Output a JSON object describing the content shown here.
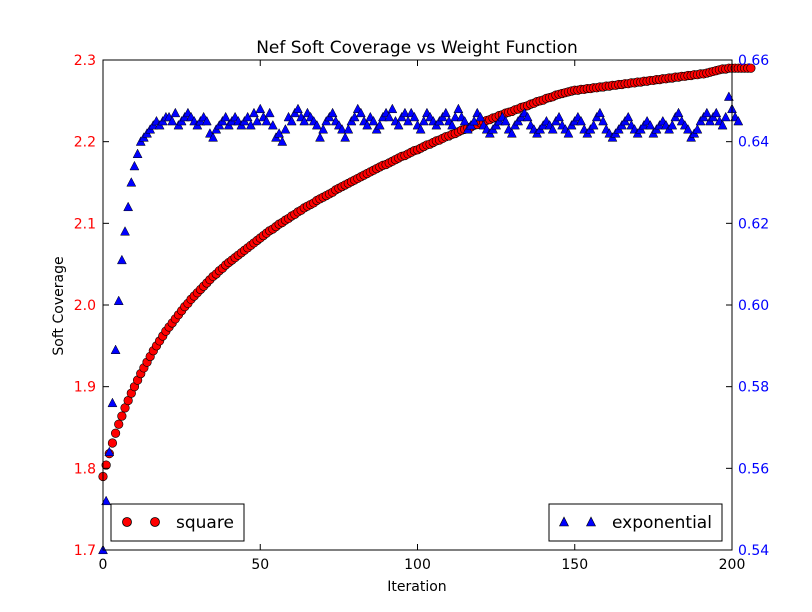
{
  "chart_data": {
    "type": "scatter",
    "title": "Nef Soft Coverage vs Weight Function",
    "xlabel": "Iteration",
    "ylabel": "Soft Coverage",
    "xlim": [
      0,
      200
    ],
    "ylim_left": [
      1.7,
      2.3
    ],
    "ylim_right": [
      0.54,
      0.66
    ],
    "x_ticks": [
      0,
      50,
      100,
      150,
      200
    ],
    "y_ticks_left": [
      "1.7",
      "1.8",
      "1.9",
      "2.0",
      "2.1",
      "2.2",
      "2.3"
    ],
    "y_ticks_right": [
      "0.54",
      "0.56",
      "0.58",
      "0.60",
      "0.62",
      "0.64",
      "0.66"
    ],
    "grid": false,
    "series": [
      {
        "name": "square",
        "axis": "left",
        "marker": "circle",
        "color": "#ff0000",
        "legend_position": "lower-left",
        "x_start": 0,
        "x_step": 1,
        "values": [
          1.79,
          1.804,
          1.818,
          1.831,
          1.843,
          1.854,
          1.864,
          1.874,
          1.883,
          1.892,
          1.9,
          1.908,
          1.916,
          1.923,
          1.93,
          1.937,
          1.944,
          1.95,
          1.956,
          1.962,
          1.968,
          1.973,
          1.978,
          1.983,
          1.988,
          1.993,
          1.998,
          2.002,
          2.007,
          2.011,
          2.015,
          2.019,
          2.023,
          2.027,
          2.031,
          2.035,
          2.038,
          2.042,
          2.045,
          2.049,
          2.052,
          2.055,
          2.058,
          2.061,
          2.064,
          2.067,
          2.07,
          2.073,
          2.076,
          2.079,
          2.082,
          2.085,
          2.088,
          2.091,
          2.093,
          2.096,
          2.099,
          2.101,
          2.104,
          2.106,
          2.109,
          2.111,
          2.114,
          2.116,
          2.119,
          2.121,
          2.123,
          2.125,
          2.128,
          2.13,
          2.132,
          2.134,
          2.136,
          2.138,
          2.141,
          2.143,
          2.145,
          2.147,
          2.149,
          2.151,
          2.153,
          2.155,
          2.157,
          2.159,
          2.161,
          2.163,
          2.165,
          2.167,
          2.169,
          2.171,
          2.172,
          2.174,
          2.176,
          2.178,
          2.18,
          2.182,
          2.183,
          2.185,
          2.187,
          2.189,
          2.19,
          2.192,
          2.194,
          2.196,
          2.197,
          2.199,
          2.201,
          2.202,
          2.204,
          2.206,
          2.207,
          2.209,
          2.21,
          2.212,
          2.214,
          2.215,
          2.217,
          2.218,
          2.22,
          2.221,
          2.223,
          2.224,
          2.226,
          2.227,
          2.229,
          2.23,
          2.232,
          2.233,
          2.235,
          2.236,
          2.237,
          2.239,
          2.24,
          2.242,
          2.243,
          2.244,
          2.246,
          2.247,
          2.249,
          2.25,
          2.251,
          2.253,
          2.254,
          2.255,
          2.257,
          2.258,
          2.259,
          2.26,
          2.261,
          2.262,
          2.263,
          2.263,
          2.264,
          2.264,
          2.265,
          2.265,
          2.266,
          2.266,
          2.267,
          2.267,
          2.268,
          2.268,
          2.269,
          2.269,
          2.27,
          2.27,
          2.271,
          2.271,
          2.272,
          2.272,
          2.273,
          2.273,
          2.274,
          2.274,
          2.275,
          2.275,
          2.276,
          2.276,
          2.277,
          2.277,
          2.278,
          2.278,
          2.279,
          2.279,
          2.28,
          2.28,
          2.281,
          2.281,
          2.282,
          2.282,
          2.283,
          2.283,
          2.284,
          2.285,
          2.286,
          2.287,
          2.288,
          2.289,
          2.289,
          2.29,
          2.29,
          2.29,
          2.29,
          2.29,
          2.29,
          2.29,
          2.29
        ]
      },
      {
        "name": "exponential",
        "axis": "right",
        "marker": "triangle",
        "color": "#0000ff",
        "legend_position": "lower-right",
        "x_start": 0,
        "x_step": 1,
        "values": [
          0.54,
          0.552,
          0.564,
          0.576,
          0.589,
          0.601,
          0.611,
          0.618,
          0.624,
          0.63,
          0.634,
          0.637,
          0.64,
          0.641,
          0.642,
          0.643,
          0.644,
          0.645,
          0.644,
          0.645,
          0.646,
          0.646,
          0.645,
          0.647,
          0.644,
          0.645,
          0.646,
          0.647,
          0.646,
          0.645,
          0.644,
          0.645,
          0.646,
          0.645,
          0.642,
          0.641,
          0.643,
          0.644,
          0.645,
          0.646,
          0.644,
          0.645,
          0.646,
          0.645,
          0.644,
          0.645,
          0.646,
          0.644,
          0.647,
          0.645,
          0.648,
          0.646,
          0.645,
          0.647,
          0.644,
          0.641,
          0.642,
          0.64,
          0.643,
          0.646,
          0.645,
          0.647,
          0.648,
          0.646,
          0.645,
          0.647,
          0.646,
          0.645,
          0.644,
          0.641,
          0.643,
          0.645,
          0.646,
          0.647,
          0.645,
          0.644,
          0.643,
          0.641,
          0.643,
          0.645,
          0.646,
          0.648,
          0.647,
          0.645,
          0.644,
          0.646,
          0.645,
          0.643,
          0.644,
          0.646,
          0.647,
          0.646,
          0.648,
          0.645,
          0.644,
          0.646,
          0.647,
          0.645,
          0.647,
          0.646,
          0.644,
          0.643,
          0.645,
          0.647,
          0.646,
          0.645,
          0.644,
          0.645,
          0.646,
          0.647,
          0.645,
          0.644,
          0.646,
          0.648,
          0.646,
          0.645,
          0.643,
          0.644,
          0.645,
          0.647,
          0.646,
          0.644,
          0.643,
          0.642,
          0.643,
          0.644,
          0.645,
          0.646,
          0.645,
          0.643,
          0.642,
          0.644,
          0.645,
          0.646,
          0.647,
          0.646,
          0.644,
          0.643,
          0.642,
          0.643,
          0.644,
          0.645,
          0.644,
          0.643,
          0.645,
          0.646,
          0.644,
          0.643,
          0.642,
          0.644,
          0.645,
          0.646,
          0.645,
          0.643,
          0.642,
          0.643,
          0.644,
          0.646,
          0.647,
          0.645,
          0.643,
          0.642,
          0.641,
          0.642,
          0.643,
          0.644,
          0.645,
          0.646,
          0.644,
          0.643,
          0.642,
          0.643,
          0.644,
          0.645,
          0.644,
          0.642,
          0.643,
          0.644,
          0.645,
          0.644,
          0.643,
          0.644,
          0.646,
          0.647,
          0.645,
          0.644,
          0.643,
          0.641,
          0.642,
          0.643,
          0.645,
          0.646,
          0.647,
          0.645,
          0.646,
          0.647,
          0.645,
          0.644,
          0.646,
          0.651,
          0.648,
          0.646,
          0.645
        ]
      }
    ]
  }
}
